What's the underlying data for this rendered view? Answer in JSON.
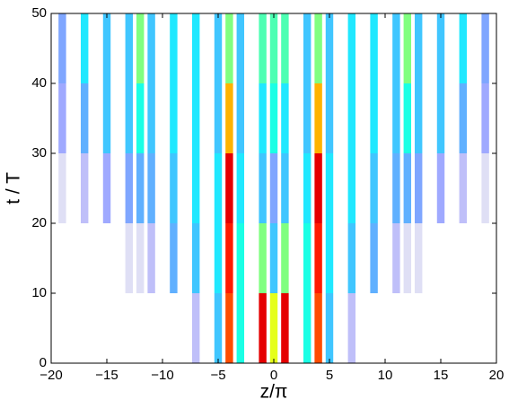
{
  "chart_data": {
    "type": "heatmap",
    "x_label": "z/π",
    "y_label": "t / T",
    "x": [
      -19,
      -17,
      -15,
      -13,
      -12,
      -11,
      -9,
      -7,
      -5,
      -4,
      -3,
      -1,
      0,
      1,
      3,
      4,
      5,
      7,
      9,
      11,
      12,
      13,
      15,
      17,
      19
    ],
    "y": [
      5,
      15,
      25,
      35,
      45
    ],
    "values": [
      [
        0,
        0,
        0,
        0,
        0,
        0,
        0,
        0.1,
        0.3,
        0.8,
        0.4,
        0.9,
        0.6,
        0.9,
        0.4,
        0.8,
        0.3,
        0.1,
        0,
        0,
        0,
        0,
        0,
        0,
        0
      ],
      [
        0,
        0,
        0,
        0.05,
        0.05,
        0.1,
        0.25,
        0.3,
        0.35,
        0.85,
        0.4,
        0.5,
        0.3,
        0.5,
        0.4,
        0.85,
        0.35,
        0.3,
        0.25,
        0.1,
        0.05,
        0.05,
        0,
        0,
        0
      ],
      [
        0.05,
        0.1,
        0.15,
        0.2,
        0.25,
        0.25,
        0.3,
        0.35,
        0.35,
        0.9,
        0.35,
        0.3,
        0.2,
        0.3,
        0.35,
        0.9,
        0.35,
        0.35,
        0.3,
        0.25,
        0.25,
        0.2,
        0.15,
        0.1,
        0.05
      ],
      [
        0.15,
        0.25,
        0.3,
        0.3,
        0.4,
        0.3,
        0.35,
        0.35,
        0.3,
        0.7,
        0.3,
        0.35,
        0.4,
        0.35,
        0.3,
        0.7,
        0.3,
        0.35,
        0.35,
        0.3,
        0.4,
        0.3,
        0.3,
        0.25,
        0.15
      ],
      [
        0.2,
        0.35,
        0.3,
        0.3,
        0.5,
        0.3,
        0.35,
        0.35,
        0.3,
        0.5,
        0.3,
        0.45,
        0.45,
        0.45,
        0.3,
        0.5,
        0.3,
        0.35,
        0.35,
        0.3,
        0.5,
        0.3,
        0.3,
        0.35,
        0.2
      ]
    ],
    "colormap": "jet",
    "xlim": [
      -20,
      20
    ],
    "xticks": [
      {
        "value": -20,
        "label": "−20"
      },
      {
        "value": -15,
        "label": "−15"
      },
      {
        "value": -10,
        "label": "−10"
      },
      {
        "value": -5,
        "label": "−5"
      },
      0,
      5,
      10,
      15,
      20
    ],
    "ylim": [
      0,
      50
    ],
    "yticks": [
      0,
      10,
      20,
      30,
      40,
      50
    ]
  }
}
